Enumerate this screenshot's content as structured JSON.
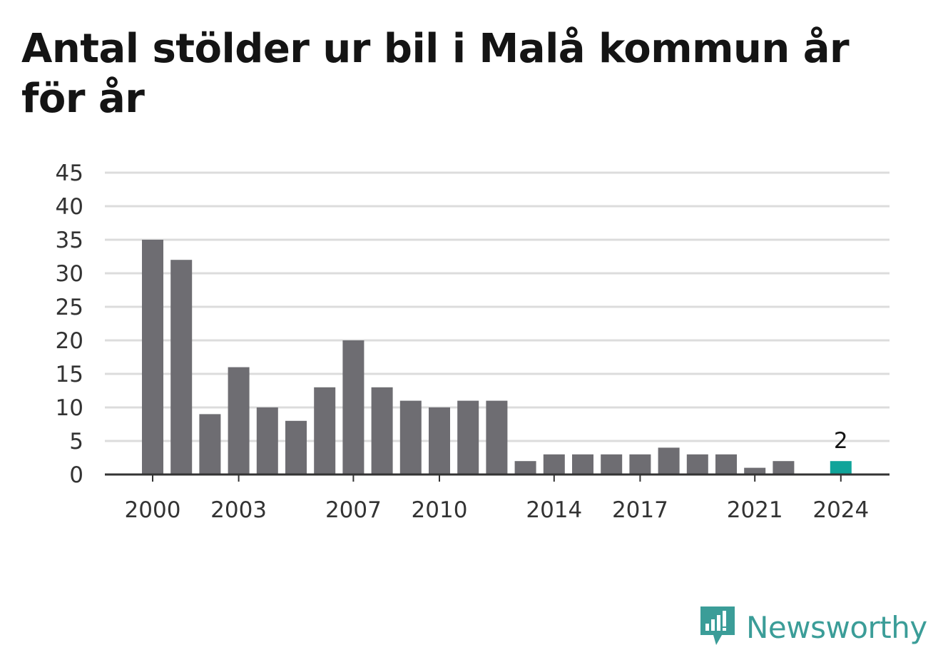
{
  "title": "Antal stölder ur bil i Malå kommun år för år",
  "brand": {
    "name": "Newsworthy",
    "icon": "newsworthy-logo-icon"
  },
  "colors": {
    "bar": "#6e6d72",
    "highlight": "#10a49a",
    "grid": "#dcdcdc",
    "axis": "#333333",
    "brand": "#3b9d98"
  },
  "chart_data": {
    "type": "bar",
    "title": "Antal stölder ur bil i Malå kommun år för år",
    "xlabel": "",
    "ylabel": "",
    "categories": [
      2000,
      2001,
      2002,
      2003,
      2004,
      2005,
      2006,
      2007,
      2008,
      2009,
      2010,
      2011,
      2012,
      2013,
      2014,
      2015,
      2016,
      2017,
      2018,
      2019,
      2020,
      2021,
      2022,
      2023,
      2024
    ],
    "values": [
      35,
      32,
      9,
      16,
      10,
      8,
      13,
      20,
      13,
      11,
      10,
      11,
      11,
      2,
      3,
      3,
      3,
      3,
      4,
      3,
      3,
      1,
      2,
      0,
      2
    ],
    "x_tick_labels": [
      "2000",
      "2003",
      "2007",
      "2010",
      "2014",
      "2017",
      "2021",
      "2024"
    ],
    "y_ticks": [
      0,
      5,
      10,
      15,
      20,
      25,
      30,
      35,
      40,
      45
    ],
    "ylim": [
      0,
      45
    ],
    "grid": true,
    "highlight": {
      "category": 2024,
      "label": "2"
    },
    "legend": "none"
  }
}
